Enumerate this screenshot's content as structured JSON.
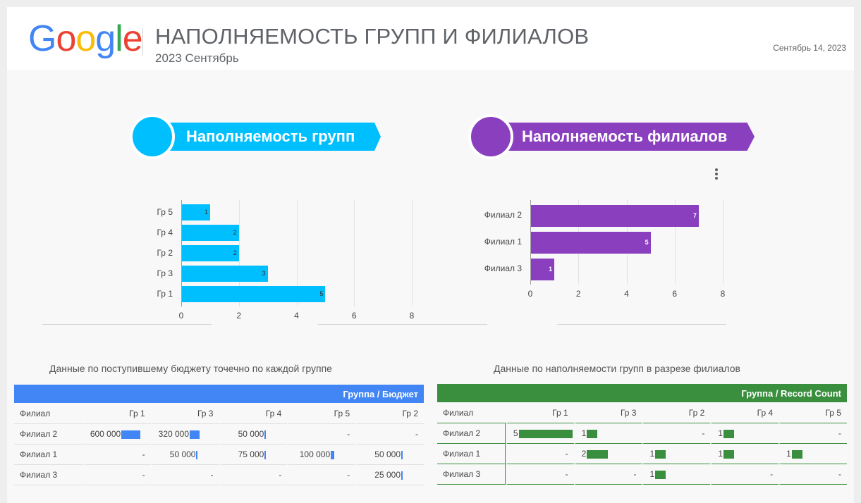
{
  "header": {
    "logo_letters": [
      "G",
      "o",
      "o",
      "g",
      "l",
      "e"
    ],
    "logo_colors": [
      "#4285F4",
      "#EA4335",
      "#FBBC05",
      "#4285F4",
      "#34A853",
      "#EA4335"
    ],
    "title": "НАПОЛНЯЕМОСТЬ ГРУПП И ФИЛИАЛОВ",
    "subtitle": "2023 Сентябрь",
    "date": "Сентябрь 14, 2023"
  },
  "colors": {
    "cyan": "#00BFFF",
    "purple": "#8A3FBF",
    "blue": "#4285F4",
    "green": "#3A8F3E"
  },
  "banners": [
    {
      "label": "Наполняемость групп",
      "color": "#00BFFF"
    },
    {
      "label": "Наполняемость филиалов",
      "color": "#8A3FBF"
    }
  ],
  "chart_data": [
    {
      "type": "bar",
      "orientation": "horizontal",
      "categories": [
        "Гр 5",
        "Гр 4",
        "Гр 2",
        "Гр 3",
        "Гр 1"
      ],
      "values": [
        1,
        2,
        2,
        3,
        5
      ],
      "xlim": [
        0,
        8
      ],
      "xticks": [
        "0",
        "2",
        "4",
        "6",
        "8"
      ],
      "grid": true,
      "color": "#00BFFF"
    },
    {
      "type": "bar",
      "orientation": "horizontal",
      "categories": [
        "Филиал 2",
        "Филиал 1",
        "Филиал 3"
      ],
      "values": [
        7,
        5,
        1
      ],
      "xlim": [
        0,
        8
      ],
      "xticks": [
        "0",
        "2",
        "4",
        "6",
        "8"
      ],
      "grid": true,
      "color": "#8A3FBF"
    }
  ],
  "chart_menu_icon": "more-vert-icon",
  "budget_table": {
    "caption": "Данные по поступившему бюджету точечно по каждой группе",
    "header": "Группа / Бюджет",
    "row_header": "Филиал",
    "columns": [
      "Гр 1",
      "Гр 3",
      "Гр 4",
      "Гр 5",
      "Гр 2"
    ],
    "rows": [
      {
        "label": "Филиал 2",
        "cells": [
          "600 000",
          "320 000",
          "50 000",
          "-",
          "-"
        ],
        "values": [
          600000,
          320000,
          50000,
          0,
          0
        ]
      },
      {
        "label": "Филиал 1",
        "cells": [
          "-",
          "50 000",
          "75 000",
          "100 000",
          "50 000"
        ],
        "values": [
          0,
          50000,
          75000,
          100000,
          50000
        ]
      },
      {
        "label": "Филиал 3",
        "cells": [
          "-",
          "-",
          "-",
          "-",
          "25 000"
        ],
        "values": [
          0,
          0,
          0,
          0,
          25000
        ]
      }
    ],
    "max_value": 600000
  },
  "count_table": {
    "caption": "Данные по наполняемости групп в разрезе филиалов",
    "header": "Группа / Record Count",
    "row_header": "Филиал",
    "columns": [
      "Гр 1",
      "Гр 3",
      "Гр 2",
      "Гр 4",
      "Гр 5"
    ],
    "rows": [
      {
        "label": "Филиал 2",
        "cells": [
          "5",
          "1",
          "-",
          "1",
          "-"
        ],
        "values": [
          5,
          1,
          0,
          1,
          0
        ]
      },
      {
        "label": "Филиал 1",
        "cells": [
          "-",
          "2",
          "1",
          "1",
          "1"
        ],
        "values": [
          0,
          2,
          1,
          1,
          1
        ]
      },
      {
        "label": "Филиал 3",
        "cells": [
          "-",
          "-",
          "1",
          "-",
          "-"
        ],
        "values": [
          0,
          0,
          1,
          0,
          0
        ]
      }
    ],
    "max_value": 5
  }
}
